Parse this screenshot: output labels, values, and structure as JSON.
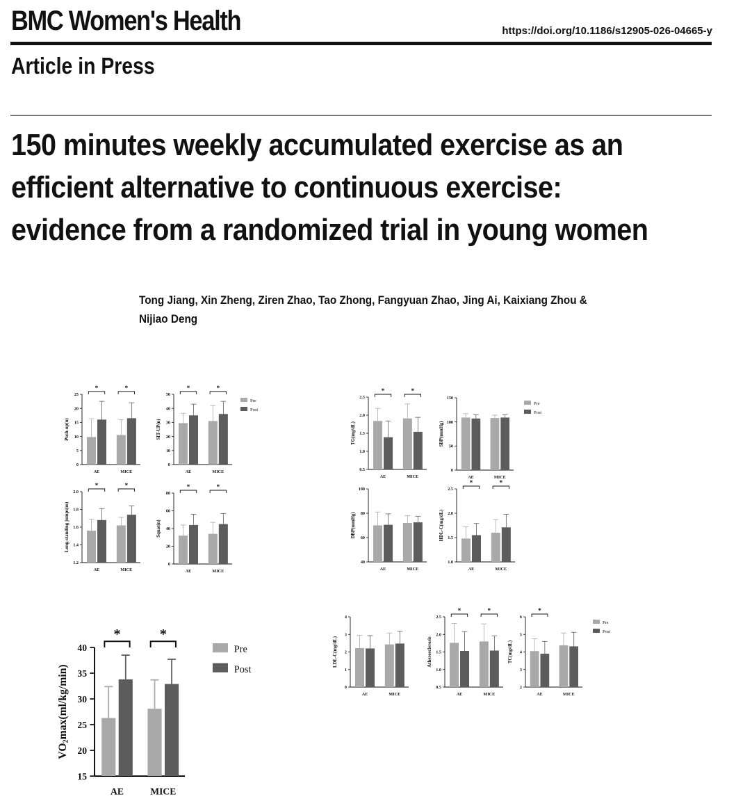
{
  "header": {
    "journal": "BMC Women's Health",
    "doi": "https://doi.org/10.1186/s12905-026-04665-y",
    "status": "Article in Press"
  },
  "article": {
    "title": "150 minutes weekly accumulated exercise as an efficient alternative to continuous exercise: evidence from a randomized trial in young women",
    "authors": "Tong Jiang, Xin Zheng, Ziren Zhao, Tao Zhong, Fangyuan Zhao, Jing Ai, Kaixiang Zhou & Nijiao Deng"
  },
  "colors": {
    "pre": "#a9a9a9",
    "post": "#5c5c5c"
  },
  "legend": {
    "pre": "Pre",
    "post": "Post"
  },
  "chart_data": [
    {
      "type": "bar",
      "ylabel": "Push-up(n)",
      "categories": [
        "AE",
        "MICE"
      ],
      "ylim": [
        0,
        25
      ],
      "ticks": [
        0,
        5,
        10,
        15,
        20,
        25
      ],
      "series": [
        {
          "name": "Pre",
          "values": [
            9.8,
            10.5
          ],
          "errors": [
            6.5,
            5.5
          ]
        },
        {
          "name": "Post",
          "values": [
            16,
            16.5
          ],
          "errors": [
            6.5,
            5.5
          ]
        }
      ],
      "significant": [
        true,
        true
      ]
    },
    {
      "type": "bar",
      "ylabel": "SIT-UP(n)",
      "categories": [
        "AE",
        "MICE"
      ],
      "ylim": [
        0,
        50
      ],
      "ticks": [
        0,
        10,
        20,
        30,
        40,
        50
      ],
      "series": [
        {
          "name": "Pre",
          "values": [
            29.5,
            31
          ],
          "errors": [
            7,
            11
          ]
        },
        {
          "name": "Post",
          "values": [
            35,
            36
          ],
          "errors": [
            8,
            9
          ]
        }
      ],
      "significant": [
        true,
        true
      ]
    },
    {
      "type": "bar",
      "ylabel": "Long-standing jumps(m)",
      "categories": [
        "AE",
        "MICE"
      ],
      "ylim": [
        1.2,
        2.0
      ],
      "ticks": [
        "1.2",
        "1.4",
        "1.6",
        "1.8",
        "2.0"
      ],
      "series": [
        {
          "name": "Pre",
          "values": [
            1.56,
            1.62
          ],
          "errors": [
            0.13,
            0.09
          ]
        },
        {
          "name": "Post",
          "values": [
            1.68,
            1.74
          ],
          "errors": [
            0.13,
            0.1
          ]
        }
      ],
      "significant": [
        true,
        true
      ]
    },
    {
      "type": "bar",
      "ylabel": "Squat(n)",
      "categories": [
        "AE",
        "MICE"
      ],
      "ylim": [
        0,
        80
      ],
      "ticks": [
        0,
        20,
        40,
        60,
        80
      ],
      "series": [
        {
          "name": "Pre",
          "values": [
            32,
            34
          ],
          "errors": [
            12,
            13
          ]
        },
        {
          "name": "Post",
          "values": [
            44,
            45
          ],
          "errors": [
            12,
            12
          ]
        }
      ],
      "significant": [
        true,
        true
      ]
    },
    {
      "type": "bar",
      "ylabel": "TG(mg/dL)",
      "categories": [
        "AE",
        "MICE"
      ],
      "ylim": [
        0.5,
        2.5
      ],
      "ticks": [
        "0.5",
        "1.0",
        "1.5",
        "2.0",
        "2.5"
      ],
      "series": [
        {
          "name": "Pre",
          "values": [
            1.84,
            1.91
          ],
          "errors": [
            0.35,
            0.4
          ]
        },
        {
          "name": "Post",
          "values": [
            1.39,
            1.54
          ],
          "errors": [
            0.45,
            0.4
          ]
        }
      ],
      "significant": [
        true,
        true
      ]
    },
    {
      "type": "bar",
      "ylabel": "SBP(mmHg)",
      "categories": [
        "AE",
        "MICE"
      ],
      "ylim": [
        0,
        150
      ],
      "ticks": [
        0,
        50,
        100,
        150
      ],
      "series": [
        {
          "name": "Pre",
          "values": [
            109,
            108
          ],
          "errors": [
            8,
            6
          ]
        },
        {
          "name": "Post",
          "values": [
            107,
            109
          ],
          "errors": [
            8,
            6
          ]
        }
      ],
      "significant": [
        false,
        false
      ]
    },
    {
      "type": "bar",
      "ylabel": "DBP(mmHg)",
      "categories": [
        "AE",
        "MICE"
      ],
      "ylim": [
        40,
        100
      ],
      "ticks": [
        40,
        60,
        80,
        100
      ],
      "series": [
        {
          "name": "Pre",
          "values": [
            70,
            72
          ],
          "errors": [
            11,
            6
          ]
        },
        {
          "name": "Post",
          "values": [
            70.5,
            72.5
          ],
          "errors": [
            9,
            5
          ]
        }
      ],
      "significant": [
        false,
        false
      ]
    },
    {
      "type": "bar",
      "ylabel": "HDL-C(mg/dL)",
      "categories": [
        "AE",
        "MICE"
      ],
      "ylim": [
        1.0,
        2.5
      ],
      "ticks": [
        "1.0",
        "1.5",
        "2.0",
        "2.5"
      ],
      "series": [
        {
          "name": "Pre",
          "values": [
            1.48,
            1.6
          ],
          "errors": [
            0.24,
            0.27
          ]
        },
        {
          "name": "Post",
          "values": [
            1.55,
            1.71
          ],
          "errors": [
            0.24,
            0.27
          ]
        }
      ],
      "significant": [
        true,
        true
      ]
    },
    {
      "type": "bar",
      "ylabel": "VO2max(ml/kg/min)",
      "categories": [
        "AE",
        "MICE"
      ],
      "ylim": [
        15,
        40
      ],
      "ticks": [
        15,
        20,
        25,
        30,
        35,
        40
      ],
      "series": [
        {
          "name": "Pre",
          "values": [
            26.3,
            28.1
          ],
          "errors": [
            6.1,
            5.6
          ]
        },
        {
          "name": "Post",
          "values": [
            33.8,
            32.9
          ],
          "errors": [
            4.7,
            4.8
          ]
        }
      ],
      "significant": [
        true,
        true
      ]
    },
    {
      "type": "bar",
      "ylabel": "LDL-C(mg/dL)",
      "categories": [
        "AE",
        "MICE"
      ],
      "ylim": [
        0,
        4
      ],
      "ticks": [
        0,
        1,
        2,
        3,
        4
      ],
      "series": [
        {
          "name": "Pre",
          "values": [
            2.22,
            2.43
          ],
          "errors": [
            0.73,
            0.65
          ]
        },
        {
          "name": "Post",
          "values": [
            2.2,
            2.48
          ],
          "errors": [
            0.73,
            0.7
          ]
        }
      ],
      "significant": [
        false,
        false
      ]
    },
    {
      "type": "bar",
      "ylabel": "Atherosclerosis",
      "categories": [
        "AE",
        "MICE"
      ],
      "ylim": [
        0.5,
        2.5
      ],
      "ticks": [
        "0.5",
        "1.0",
        "1.5",
        "2.0",
        "2.5"
      ],
      "series": [
        {
          "name": "Pre",
          "values": [
            1.76,
            1.8
          ],
          "errors": [
            0.55,
            0.5
          ]
        },
        {
          "name": "Post",
          "values": [
            1.53,
            1.54
          ],
          "errors": [
            0.55,
            0.42
          ]
        }
      ],
      "significant": [
        true,
        true
      ]
    },
    {
      "type": "bar",
      "ylabel": "TC(mg/dL)",
      "categories": [
        "AE",
        "MICE"
      ],
      "ylim": [
        2,
        6
      ],
      "ticks": [
        2,
        3,
        4,
        5,
        6
      ],
      "series": [
        {
          "name": "Pre",
          "values": [
            4.05,
            4.38
          ],
          "errors": [
            0.7,
            0.7
          ]
        },
        {
          "name": "Post",
          "values": [
            3.9,
            4.32
          ],
          "errors": [
            0.7,
            0.8
          ]
        }
      ],
      "significant": [
        true,
        false
      ]
    }
  ]
}
